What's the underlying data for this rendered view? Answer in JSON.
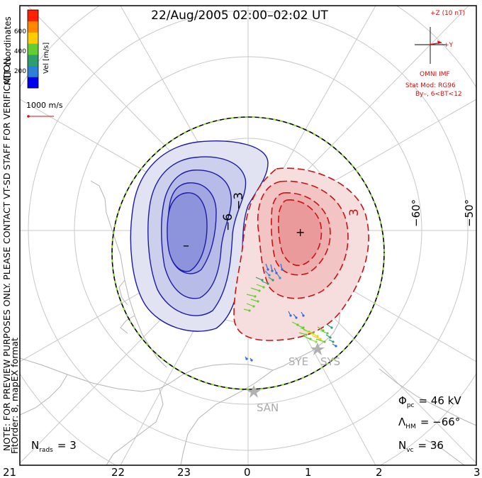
{
  "title": "22/Aug/2005 02:00–02:02 UT",
  "side_note": "NOTE: FOR PREVIEW PURPOSES ONLY. PLEASE CONTACT VT-SD STAFF FOR VERIFICATION.",
  "fit_order": "FitOrder: 8, mapEX format",
  "mlt_coordinates": "MLT coordinates",
  "color_bar": {
    "label": "Vel [m/s]",
    "ticks": [
      "600",
      "400",
      "200"
    ],
    "colors": [
      "#0000ee",
      "#2e7fd6",
      "#2e9e6e",
      "#66cc33",
      "#ffcc00",
      "#ff8800",
      "#ff2200"
    ]
  },
  "vector_scale": "1000 m/s",
  "imf": {
    "z_label": "+Z (10 nT)",
    "y_label": "+Y",
    "source": "OMNI IMF",
    "model": "Stat Mod: RG96",
    "condition": "By–, 6<BT<12"
  },
  "mlt_labels": [
    "21",
    "22",
    "23",
    "0",
    "1",
    "2",
    "3"
  ],
  "lat_labels": [
    "−60°",
    "−50°"
  ],
  "contour_labels": [
    "−3",
    "−6",
    "3"
  ],
  "min_marker": "–",
  "max_marker": "+",
  "radars": [
    "SYE",
    "SYS",
    "SAN"
  ],
  "stats": {
    "phi_pc_symbol": "Φ",
    "phi_pc_sub": "pc",
    "phi_pc_value": "= 46 kV",
    "lambda_hm_symbol": "Λ",
    "lambda_hm_sub": "HM",
    "lambda_hm_value": "= −66°",
    "n_vc_symbol": "N",
    "n_vc_sub": "vc",
    "n_vc_value": "= 36",
    "n_rads_symbol": "N",
    "n_rads_sub": "rads",
    "n_rads_value": "= 3"
  }
}
